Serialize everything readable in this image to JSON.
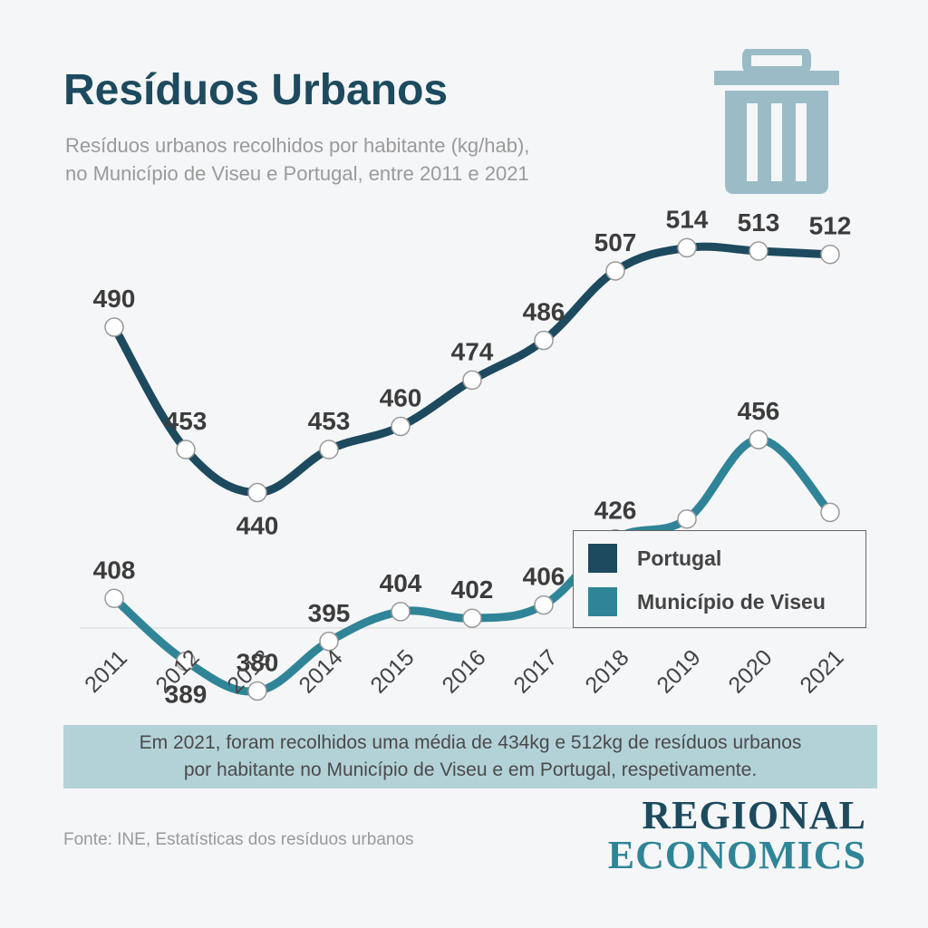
{
  "header": {
    "title": "Resíduos Urbanos",
    "subtitle_line1": "Resíduos urbanos recolhidos por habitante (kg/hab),",
    "subtitle_line2": "no Município de Viseu e Portugal, entre 2011 e 2021",
    "icon": "trash-can-icon"
  },
  "colors": {
    "portugal": "#1d4a5e",
    "viseu": "#2f8597",
    "icon": "#9bbcc7",
    "note_bg": "#b3d2d8"
  },
  "chart_data": {
    "type": "line",
    "x": [
      "2011",
      "2012",
      "2013",
      "2014",
      "2015",
      "2016",
      "2017",
      "2018",
      "2019",
      "2020",
      "2021"
    ],
    "series": [
      {
        "name": "Portugal",
        "values": [
          490,
          453,
          440,
          453,
          460,
          474,
          486,
          507,
          514,
          513,
          512
        ]
      },
      {
        "name": "Município de Viseu",
        "values": [
          408,
          389,
          380,
          395,
          404,
          402,
          406,
          426,
          432,
          456,
          434
        ]
      }
    ],
    "xlabel": "",
    "ylabel": "",
    "grid": false,
    "legend": "bottom-right",
    "x_tick_rotation": -45
  },
  "note": {
    "line1": "Em 2021, foram recolhidos uma média de 434kg e 512kg de resíduos urbanos",
    "line2": "por habitante no Município de Viseu e em Portugal, respetivamente."
  },
  "footer": {
    "source": "Fonte: INE, Estatísticas dos resíduos urbanos",
    "logo_line1": "REGIONAL",
    "logo_line2": "ECONOMICS"
  }
}
